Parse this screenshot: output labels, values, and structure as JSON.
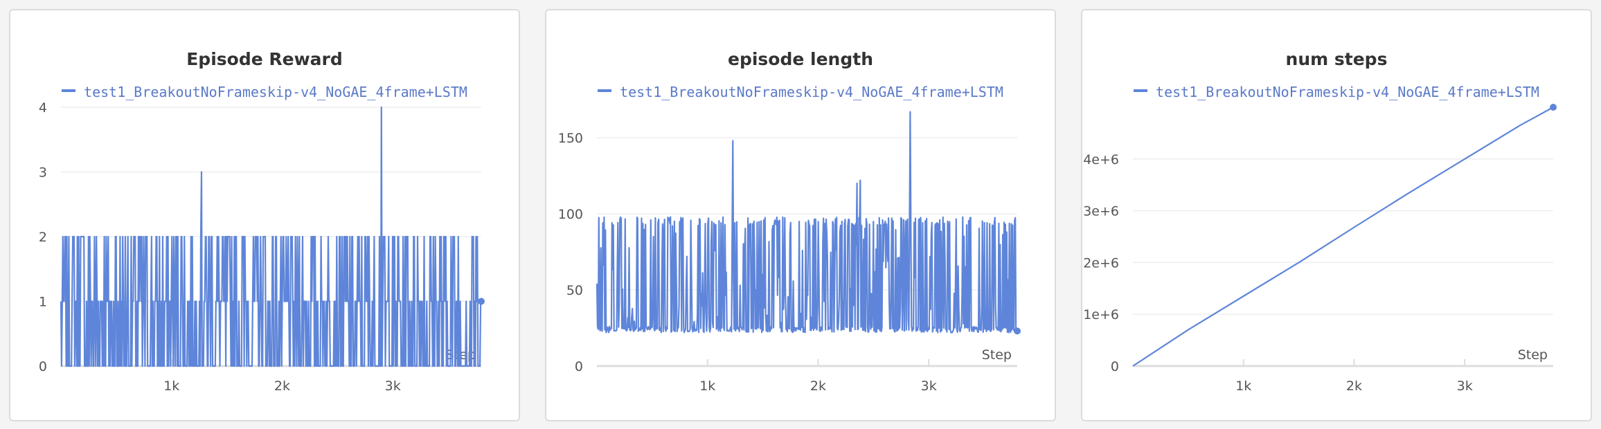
{
  "line_color": "#5e85d9",
  "grid_color": "#eeeeee",
  "chart_data": [
    {
      "type": "line",
      "title": "Episode Reward",
      "series_name": "test1_BreakoutNoFrameskip-v4_NoGAE_4frame+LSTM",
      "xlabel": "Step",
      "ylabel": "",
      "xlim": [
        0,
        3800
      ],
      "ylim": [
        0,
        4
      ],
      "xticks": [
        1000,
        2000,
        3000
      ],
      "xtick_labels": [
        "1k",
        "2k",
        "3k"
      ],
      "yticks": [
        0,
        1,
        2,
        3,
        4
      ],
      "ytick_labels": [
        "0",
        "1",
        "2",
        "3",
        "4"
      ],
      "grid": true,
      "legend": "top-center",
      "pattern": "noisy values 0–2 across all steps",
      "spikes": [
        [
          1270,
          3
        ],
        [
          2900,
          4
        ]
      ]
    },
    {
      "type": "line",
      "title": "episode length",
      "series_name": "test1_BreakoutNoFrameskip-v4_NoGAE_4frame+LSTM",
      "xlabel": "Step",
      "ylabel": "",
      "xlim": [
        0,
        3800
      ],
      "ylim": [
        0,
        170
      ],
      "xticks": [
        1000,
        2000,
        3000
      ],
      "xtick_labels": [
        "1k",
        "2k",
        "3k"
      ],
      "yticks": [
        0,
        50,
        100,
        150
      ],
      "ytick_labels": [
        "0",
        "50",
        "100",
        "150"
      ],
      "grid": true,
      "legend": "top-center",
      "pattern": "noisy values between about 22 and 98",
      "spikes": [
        [
          1230,
          148
        ],
        [
          2350,
          120
        ],
        [
          2380,
          122
        ],
        [
          2830,
          167
        ]
      ]
    },
    {
      "type": "line",
      "title": "num steps",
      "series_name": "test1_BreakoutNoFrameskip-v4_NoGAE_4frame+LSTM",
      "xlabel": "Step",
      "ylabel": "",
      "xlim": [
        0,
        3800
      ],
      "ylim": [
        0,
        5000000
      ],
      "xticks": [
        1000,
        2000,
        3000
      ],
      "xtick_labels": [
        "1k",
        "2k",
        "3k"
      ],
      "yticks": [
        0,
        1000000,
        2000000,
        3000000,
        4000000
      ],
      "ytick_labels": [
        "0",
        "1e+6",
        "2e+6",
        "3e+6",
        "4e+6"
      ],
      "grid": true,
      "legend": "top-center",
      "x": [
        0,
        500,
        1000,
        1500,
        2000,
        2500,
        3000,
        3500,
        3800
      ],
      "y": [
        0,
        700000,
        1350000,
        2000000,
        2680000,
        3350000,
        4000000,
        4650000,
        5000000
      ]
    }
  ]
}
